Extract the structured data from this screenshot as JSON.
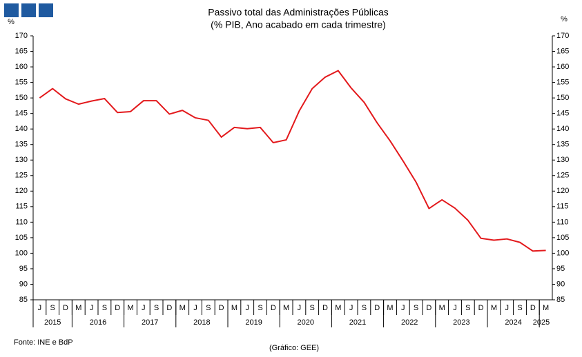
{
  "chart_data": {
    "type": "line",
    "title": "Passivo total das Administrações Públicas",
    "subtitle": "(% PIB, Ano acabado em cada trimestre)",
    "y_label": "%",
    "y2_label": "%",
    "source": "Fonte: INE e BdP",
    "credit": "(Gráfico: GEE)",
    "categories": [
      "J",
      "S",
      "D",
      "M",
      "J",
      "S",
      "D",
      "M",
      "J",
      "S",
      "D",
      "M",
      "J",
      "S",
      "D",
      "M",
      "J",
      "S",
      "D",
      "M",
      "J",
      "S",
      "D",
      "M",
      "J",
      "S",
      "D",
      "M",
      "J",
      "S",
      "D",
      "M",
      "J",
      "S",
      "D",
      "M",
      "J",
      "S",
      "D",
      "M"
    ],
    "years": [
      {
        "label": "2015",
        "quarters": 3
      },
      {
        "label": "2016",
        "quarters": 4
      },
      {
        "label": "2017",
        "quarters": 4
      },
      {
        "label": "2018",
        "quarters": 4
      },
      {
        "label": "2019",
        "quarters": 4
      },
      {
        "label": "2020",
        "quarters": 4
      },
      {
        "label": "2021",
        "quarters": 4
      },
      {
        "label": "2022",
        "quarters": 4
      },
      {
        "label": "2023",
        "quarters": 4
      },
      {
        "label": "2024",
        "quarters": 4
      },
      {
        "label": "2025",
        "quarters": 1
      }
    ],
    "values": [
      150,
      153,
      149.7,
      148,
      149,
      149.8,
      145.3,
      145.6,
      149.1,
      149.1,
      144.8,
      146,
      143.6,
      142.8,
      137.4,
      140.5,
      140.1,
      140.5,
      135.6,
      136.5,
      145.8,
      153,
      156.7,
      158.8,
      153.2,
      148.6,
      142,
      136.2,
      129.7,
      122.9,
      114.4,
      117.2,
      114.5,
      110.6,
      104.8,
      104.2,
      104.6,
      103.5,
      100.7,
      100.9
    ],
    "color": "#e3191c",
    "ylim": [
      85,
      170
    ],
    "yticks": [
      85,
      90,
      95,
      100,
      105,
      110,
      115,
      120,
      125,
      130,
      135,
      140,
      145,
      150,
      155,
      160,
      165,
      170
    ],
    "y2lim": [
      85,
      170
    ],
    "y2ticks": [
      85,
      90,
      95,
      100,
      105,
      110,
      115,
      120,
      125,
      130,
      135,
      140,
      145,
      150,
      155,
      160,
      165,
      170
    ],
    "grid": false
  }
}
